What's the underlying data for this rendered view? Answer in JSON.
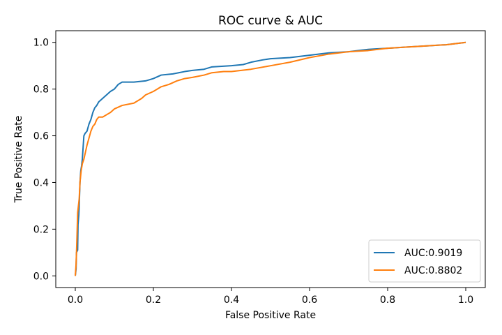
{
  "chart_data": {
    "type": "line",
    "title": "ROC curve & AUC",
    "xlabel": "False Positive Rate",
    "ylabel": "True Positive Rate",
    "xlim": [
      -0.05,
      1.05
    ],
    "ylim": [
      -0.05,
      1.05
    ],
    "xticks": [
      0.0,
      0.2,
      0.4,
      0.6,
      0.8,
      1.0
    ],
    "xtick_labels": [
      "0.0",
      "0.2",
      "0.4",
      "0.6",
      "0.8",
      "1.0"
    ],
    "yticks": [
      0.0,
      0.2,
      0.4,
      0.6,
      0.8,
      1.0
    ],
    "ytick_labels": [
      "0.0",
      "0.2",
      "0.4",
      "0.6",
      "0.8",
      "1.0"
    ],
    "grid": false,
    "legend_position": "bottom-right",
    "series": [
      {
        "name": "AUC:0.9019",
        "color": "#1f77b4",
        "points": [
          [
            0.0,
            0.0
          ],
          [
            0.002,
            0.03
          ],
          [
            0.003,
            0.1
          ],
          [
            0.006,
            0.11
          ],
          [
            0.007,
            0.22
          ],
          [
            0.009,
            0.26
          ],
          [
            0.01,
            0.3
          ],
          [
            0.012,
            0.4
          ],
          [
            0.014,
            0.45
          ],
          [
            0.016,
            0.47
          ],
          [
            0.018,
            0.5
          ],
          [
            0.02,
            0.55
          ],
          [
            0.022,
            0.6
          ],
          [
            0.025,
            0.61
          ],
          [
            0.03,
            0.62
          ],
          [
            0.035,
            0.65
          ],
          [
            0.04,
            0.67
          ],
          [
            0.045,
            0.7
          ],
          [
            0.05,
            0.72
          ],
          [
            0.055,
            0.73
          ],
          [
            0.06,
            0.745
          ],
          [
            0.07,
            0.76
          ],
          [
            0.08,
            0.775
          ],
          [
            0.09,
            0.79
          ],
          [
            0.1,
            0.8
          ],
          [
            0.11,
            0.82
          ],
          [
            0.12,
            0.83
          ],
          [
            0.15,
            0.83
          ],
          [
            0.18,
            0.835
          ],
          [
            0.2,
            0.845
          ],
          [
            0.22,
            0.86
          ],
          [
            0.25,
            0.865
          ],
          [
            0.28,
            0.875
          ],
          [
            0.3,
            0.88
          ],
          [
            0.33,
            0.885
          ],
          [
            0.35,
            0.895
          ],
          [
            0.4,
            0.9
          ],
          [
            0.43,
            0.905
          ],
          [
            0.45,
            0.915
          ],
          [
            0.48,
            0.925
          ],
          [
            0.5,
            0.93
          ],
          [
            0.55,
            0.935
          ],
          [
            0.6,
            0.945
          ],
          [
            0.65,
            0.955
          ],
          [
            0.7,
            0.96
          ],
          [
            0.75,
            0.97
          ],
          [
            0.8,
            0.975
          ],
          [
            0.85,
            0.98
          ],
          [
            0.9,
            0.985
          ],
          [
            0.95,
            0.99
          ],
          [
            1.0,
            1.0
          ]
        ]
      },
      {
        "name": "AUC:0.8802",
        "color": "#ff7f0e",
        "points": [
          [
            0.0,
            0.0
          ],
          [
            0.002,
            0.05
          ],
          [
            0.004,
            0.15
          ],
          [
            0.006,
            0.27
          ],
          [
            0.008,
            0.3
          ],
          [
            0.01,
            0.33
          ],
          [
            0.012,
            0.4
          ],
          [
            0.015,
            0.45
          ],
          [
            0.018,
            0.48
          ],
          [
            0.022,
            0.5
          ],
          [
            0.026,
            0.53
          ],
          [
            0.03,
            0.56
          ],
          [
            0.035,
            0.59
          ],
          [
            0.04,
            0.62
          ],
          [
            0.045,
            0.64
          ],
          [
            0.05,
            0.65
          ],
          [
            0.055,
            0.67
          ],
          [
            0.06,
            0.68
          ],
          [
            0.07,
            0.68
          ],
          [
            0.08,
            0.69
          ],
          [
            0.09,
            0.7
          ],
          [
            0.1,
            0.715
          ],
          [
            0.12,
            0.73
          ],
          [
            0.15,
            0.74
          ],
          [
            0.17,
            0.76
          ],
          [
            0.18,
            0.775
          ],
          [
            0.2,
            0.79
          ],
          [
            0.22,
            0.81
          ],
          [
            0.24,
            0.82
          ],
          [
            0.26,
            0.835
          ],
          [
            0.28,
            0.845
          ],
          [
            0.3,
            0.85
          ],
          [
            0.33,
            0.86
          ],
          [
            0.35,
            0.87
          ],
          [
            0.38,
            0.875
          ],
          [
            0.4,
            0.875
          ],
          [
            0.45,
            0.885
          ],
          [
            0.5,
            0.9
          ],
          [
            0.55,
            0.915
          ],
          [
            0.6,
            0.935
          ],
          [
            0.65,
            0.95
          ],
          [
            0.7,
            0.96
          ],
          [
            0.75,
            0.965
          ],
          [
            0.8,
            0.975
          ],
          [
            0.85,
            0.98
          ],
          [
            0.9,
            0.985
          ],
          [
            0.95,
            0.99
          ],
          [
            1.0,
            1.0
          ]
        ]
      }
    ]
  }
}
